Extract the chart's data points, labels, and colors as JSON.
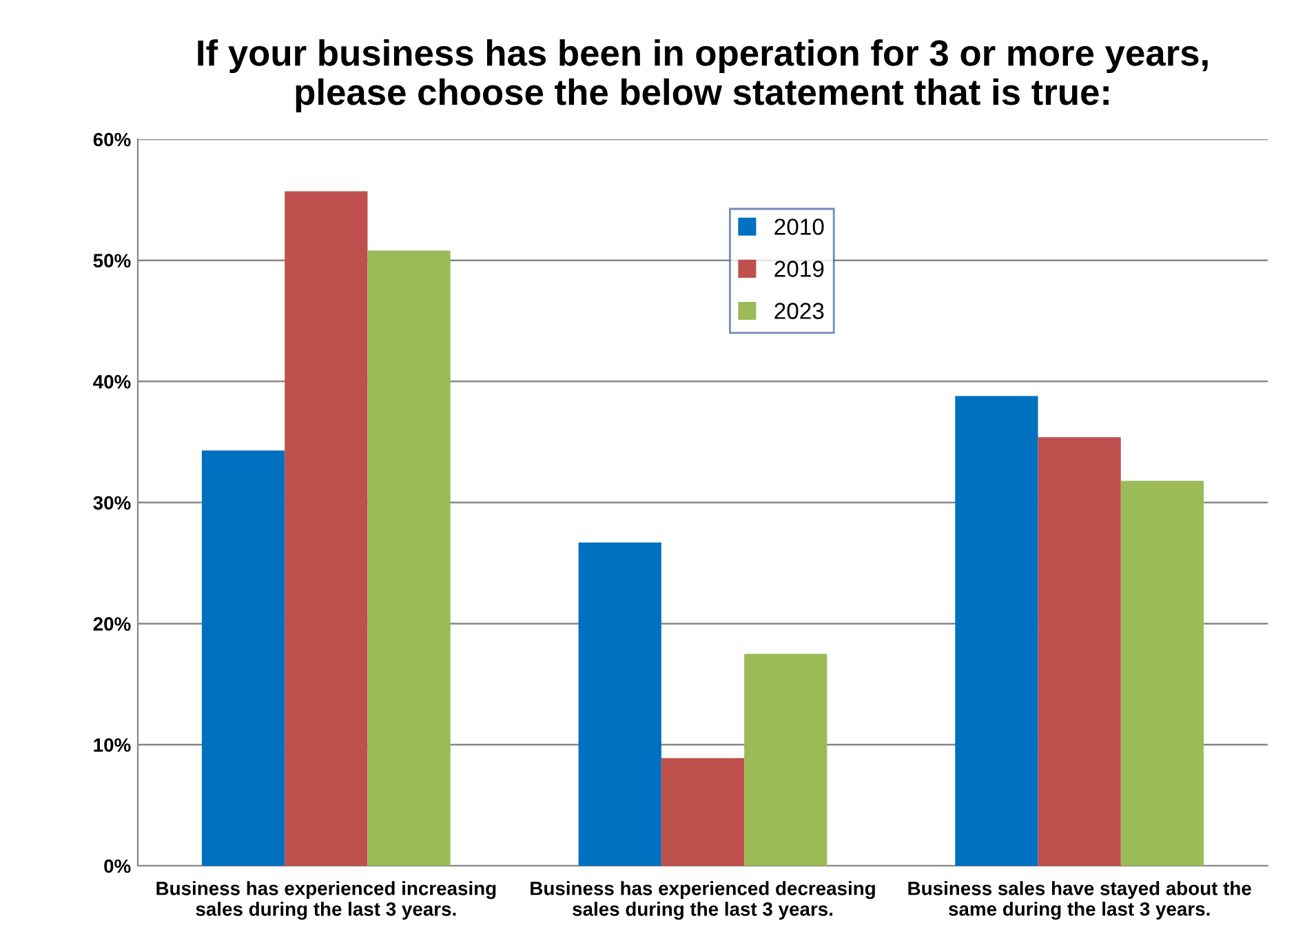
{
  "chart_data": {
    "type": "bar",
    "title": "If your business has been in operation for 3 or more years,\nplease choose the below statement that is true:",
    "categories": [
      "Business has experienced increasing\nsales during the last 3 years.",
      "Business has experienced decreasing\nsales during the last 3 years.",
      "Business sales have stayed about the\nsame during the last 3 years."
    ],
    "series": [
      {
        "name": "2010",
        "color": "#0070c0",
        "values": [
          34.3,
          26.7,
          38.8
        ]
      },
      {
        "name": "2019",
        "color": "#c0504d",
        "values": [
          55.7,
          8.9,
          35.4
        ]
      },
      {
        "name": "2023",
        "color": "#9bbb59",
        "values": [
          50.8,
          17.5,
          31.8
        ]
      }
    ],
    "ylim": [
      0,
      60
    ],
    "yticks": [
      {
        "value": 0,
        "label": "0%"
      },
      {
        "value": 10,
        "label": "10%"
      },
      {
        "value": 20,
        "label": "20%"
      },
      {
        "value": 30,
        "label": "30%"
      },
      {
        "value": 40,
        "label": "40%"
      },
      {
        "value": 50,
        "label": "50%"
      },
      {
        "value": 60,
        "label": "60%"
      }
    ],
    "grid": "y",
    "legend": "top"
  }
}
